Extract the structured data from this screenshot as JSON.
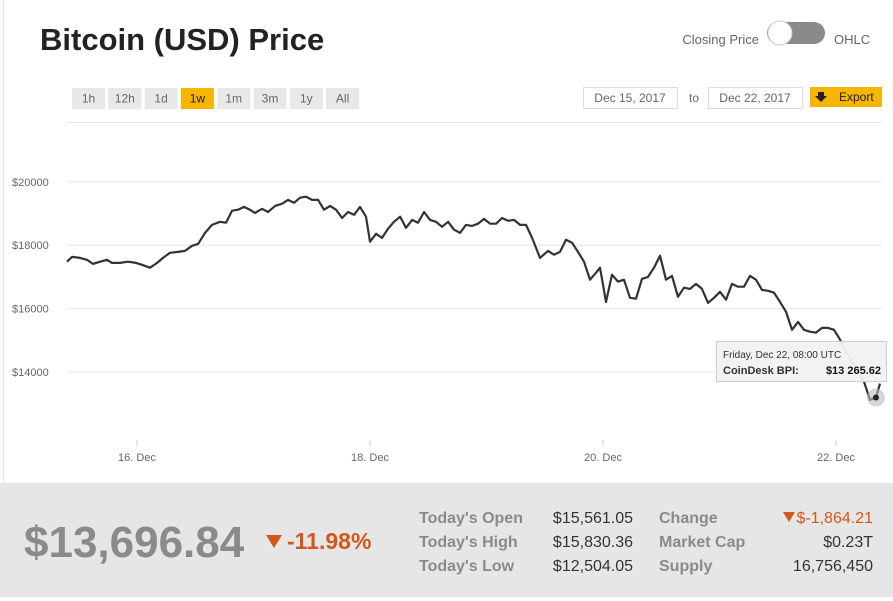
{
  "header": {
    "title": "Bitcoin (USD) Price",
    "toggle_left": "Closing Price",
    "toggle_right": "OHLC"
  },
  "controls": {
    "ranges": [
      "1h",
      "12h",
      "1d",
      "1w",
      "1m",
      "3m",
      "1y",
      "All"
    ],
    "active_range": "1w",
    "from": "Dec 15, 2017",
    "to_label": "to",
    "to": "Dec 22, 2017",
    "export": "Export"
  },
  "chart_data": {
    "type": "line",
    "color": "#333333",
    "grid": true,
    "x": [
      15.399,
      15.442,
      15.511,
      15.571,
      15.622,
      15.682,
      15.742,
      15.785,
      15.854,
      15.923,
      15.991,
      16.043,
      16.112,
      16.172,
      16.223,
      16.283,
      16.352,
      16.412,
      16.472,
      16.524,
      16.584,
      16.644,
      16.712,
      16.764,
      16.815,
      16.867,
      16.918,
      16.97,
      17.013,
      17.073,
      17.124,
      17.185,
      17.245,
      17.296,
      17.348,
      17.399,
      17.451,
      17.502,
      17.554,
      17.605,
      17.657,
      17.708,
      17.76,
      17.811,
      17.863,
      17.914,
      17.966,
      18.0,
      18.052,
      18.103,
      18.155,
      18.206,
      18.258,
      18.309,
      18.361,
      18.412,
      18.464,
      18.515,
      18.567,
      18.618,
      18.67,
      18.721,
      18.773,
      18.824,
      18.876,
      18.927,
      18.979,
      19.03,
      19.082,
      19.133,
      19.185,
      19.236,
      19.288,
      19.339,
      19.391,
      19.459,
      19.528,
      19.579,
      19.631,
      19.682,
      19.734,
      19.785,
      19.837,
      19.888,
      19.94,
      19.974,
      20.026,
      20.077,
      20.129,
      20.18,
      20.232,
      20.283,
      20.335,
      20.386,
      20.438,
      20.489,
      20.541,
      20.592,
      20.644,
      20.695,
      20.747,
      20.798,
      20.85,
      20.901,
      20.953,
      21.004,
      21.056,
      21.107,
      21.159,
      21.21,
      21.262,
      21.313,
      21.365,
      21.416,
      21.468,
      21.519,
      21.571,
      21.622,
      21.674,
      21.725,
      21.777,
      21.828,
      21.88,
      21.931,
      21.983,
      22.034,
      22.086,
      22.137,
      22.189,
      22.24,
      22.292,
      22.343,
      22.378
    ],
    "values": [
      17480,
      17630,
      17600,
      17540,
      17410,
      17480,
      17540,
      17440,
      17440,
      17480,
      17440,
      17380,
      17290,
      17440,
      17600,
      17760,
      17790,
      17820,
      17980,
      18040,
      18390,
      18640,
      18740,
      18710,
      19090,
      19120,
      19210,
      19120,
      19020,
      19150,
      19050,
      19240,
      19310,
      19430,
      19340,
      19500,
      19530,
      19430,
      19430,
      19120,
      19240,
      19120,
      18860,
      19050,
      18960,
      19210,
      18900,
      18110,
      18360,
      18230,
      18520,
      18740,
      18900,
      18550,
      18800,
      18710,
      19050,
      18800,
      18740,
      18580,
      18740,
      18490,
      18390,
      18640,
      18610,
      18680,
      18830,
      18680,
      18680,
      18860,
      18770,
      18800,
      18640,
      18640,
      18230,
      17600,
      17820,
      17700,
      17790,
      18170,
      18080,
      17790,
      17480,
      16910,
      17130,
      17290,
      16210,
      17070,
      16850,
      16910,
      16340,
      16310,
      16940,
      17000,
      17290,
      17670,
      16910,
      17030,
      16370,
      16660,
      16620,
      16780,
      16620,
      16180,
      16340,
      16530,
      16280,
      16780,
      16690,
      16690,
      17030,
      16910,
      16590,
      16560,
      16500,
      16210,
      15900,
      15330,
      15580,
      15330,
      15270,
      15240,
      15390,
      15390,
      15330,
      15020,
      14640,
      14320,
      14070,
      13690,
      13120,
      13190,
      13630
    ],
    "xlim": [
      15.399,
      22.4
    ],
    "xticks": [
      {
        "value": 16,
        "label": "16. Dec"
      },
      {
        "value": 18,
        "label": "18. Dec"
      },
      {
        "value": 20,
        "label": "20. Dec"
      },
      {
        "value": 22,
        "label": "22. Dec"
      }
    ],
    "ylim": [
      11850,
      21890
    ],
    "yticks": [
      {
        "value": 14000,
        "label": "$14000"
      },
      {
        "value": 16000,
        "label": "$16000"
      },
      {
        "value": 18000,
        "label": "$18000"
      },
      {
        "value": 20000,
        "label": "$20000"
      }
    ],
    "tooltip": {
      "date": "Friday, Dec 22, 08:00 UTC",
      "label": "CoinDesk BPI:",
      "value": "$13 265.62"
    }
  },
  "summary": {
    "price": "$13,696.84",
    "change_pct": "-11.98%",
    "stats": [
      [
        "Today's Open",
        "$15,561.05"
      ],
      [
        "Today's High",
        "$15,830.36"
      ],
      [
        "Today's Low",
        "$12,504.05"
      ]
    ],
    "stats2": [
      [
        "Change",
        "$-1,864.21"
      ],
      [
        "Market Cap",
        "$0.23T"
      ],
      [
        "Supply",
        "16,756,450"
      ]
    ]
  }
}
